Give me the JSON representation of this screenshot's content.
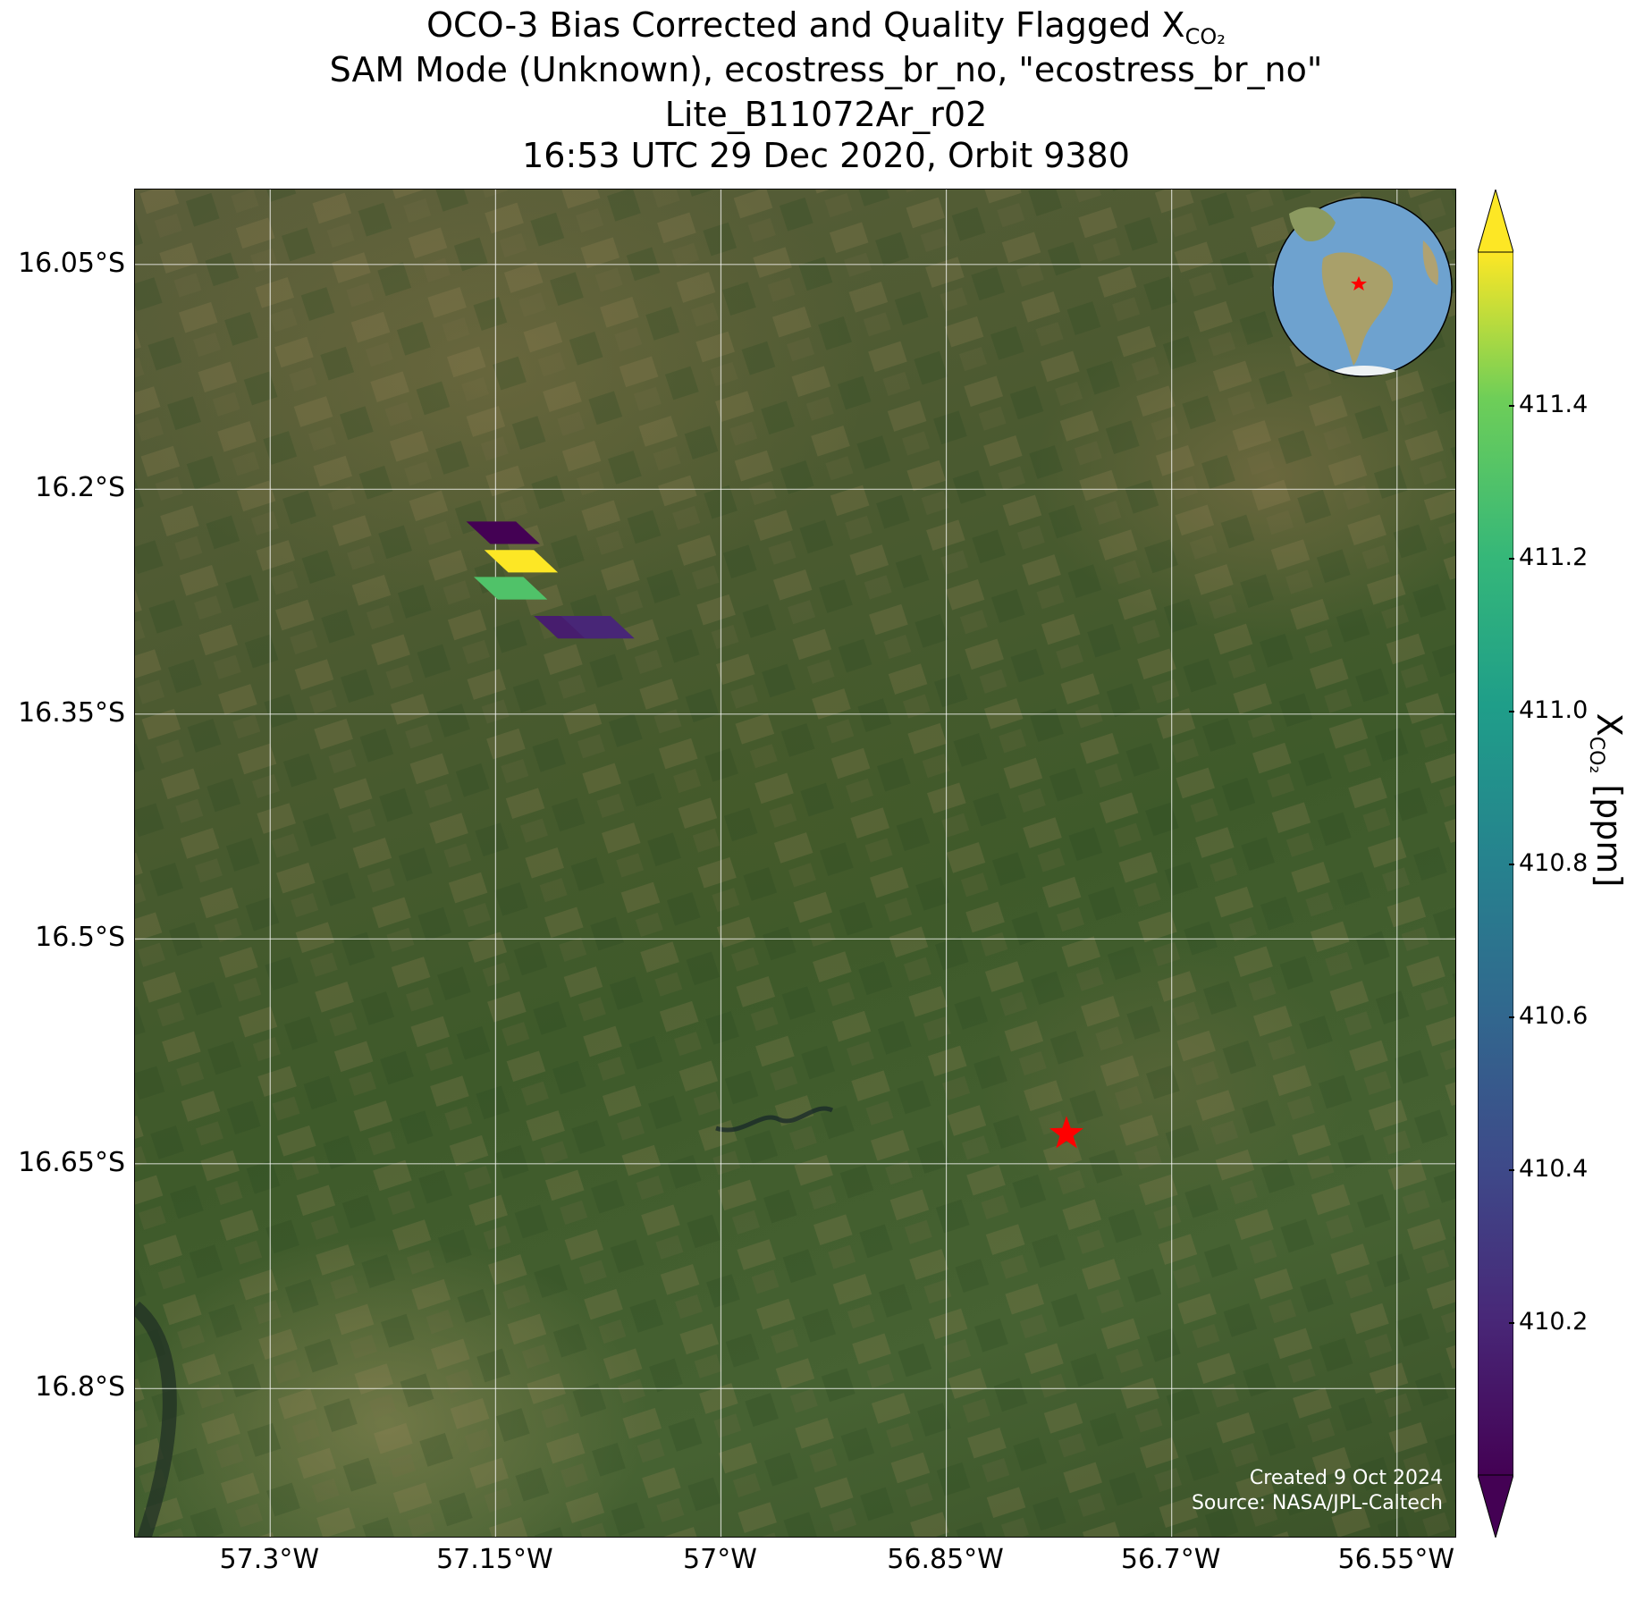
{
  "title": {
    "line1_prefix": "OCO-3 Bias Corrected and Quality Flagged X",
    "line1_sub": "CO₂",
    "line2": "SAM Mode (Unknown), ecostress_br_no, \"ecostress_br_no\"",
    "line3": "Lite_B11072Ar_r02",
    "line4": "16:53 UTC 29 Dec 2020, Orbit 9380"
  },
  "map": {
    "lon_range": [
      -57.39,
      -56.51
    ],
    "lat_range": [
      -16.9,
      -16.0
    ],
    "lat_ticks": [
      "16.05°S",
      "16.2°S",
      "16.35°S",
      "16.5°S",
      "16.65°S",
      "16.8°S"
    ],
    "lat_values": [
      -16.05,
      -16.2,
      -16.35,
      -16.5,
      -16.65,
      -16.8
    ],
    "lon_ticks": [
      "57.3°W",
      "57.15°W",
      "57°W",
      "56.85°W",
      "56.7°W",
      "56.55°W"
    ],
    "lon_values": [
      -57.3,
      -57.15,
      -57.0,
      -56.85,
      -56.7,
      -56.55
    ],
    "target_marker": {
      "lon": -56.77,
      "lat": -16.63,
      "color": "#ff0000",
      "icon": "star-icon"
    },
    "inset_globe": {
      "marker_color": "#ff0000",
      "icon": "globe-icon"
    },
    "credit_line1": "Created 9 Oct 2024",
    "credit_line2": "Source: NASA/JPL-Caltech"
  },
  "chart_data": {
    "type": "heatmap",
    "title": "OCO-3 Bias Corrected and Quality Flagged XCO₂",
    "colorbar_label": "X",
    "colorbar_label_sub": "CO₂",
    "colorbar_units": "[ppm]",
    "colormap": "viridis",
    "clim": [
      410.0,
      411.6
    ],
    "colorbar_ticks": [
      "411.4",
      "411.2",
      "411.0",
      "410.8",
      "410.6",
      "410.4",
      "410.2"
    ],
    "colorbar_tick_values": [
      411.4,
      411.2,
      411.0,
      410.8,
      410.6,
      410.4,
      410.2
    ],
    "soundings": [
      {
        "lon": -57.145,
        "lat": -16.229,
        "xco2": 410.0
      },
      {
        "lon": -57.133,
        "lat": -16.248,
        "xco2": 411.6
      },
      {
        "lon": -57.14,
        "lat": -16.266,
        "xco2": 411.3
      },
      {
        "lon": -57.1,
        "lat": -16.292,
        "xco2": 410.15
      },
      {
        "lon": -57.082,
        "lat": -16.292,
        "xco2": 410.2
      }
    ]
  }
}
